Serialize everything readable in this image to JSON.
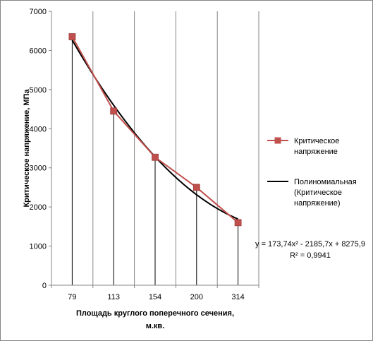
{
  "chart_data": {
    "type": "line",
    "title": "",
    "xlabel_lines": [
      "Площадь круглого поперечного сечения,",
      "м.кв."
    ],
    "ylabel": "Критическое напряжение, МПа",
    "categories": [
      "79",
      "113",
      "154",
      "200",
      "314"
    ],
    "ylim": [
      0,
      7000
    ],
    "yticks": [
      0,
      1000,
      2000,
      3000,
      4000,
      5000,
      6000,
      7000
    ],
    "ytick_labels": [
      "0",
      "1000",
      "2000",
      "3000",
      "4000",
      "5000",
      "6000",
      "7000"
    ],
    "grid": "vertical lines at category positions",
    "series": [
      {
        "name_lines": [
          "Критическое",
          "напряжение"
        ],
        "color": "#C0504D",
        "marker": "square",
        "values": [
          6350,
          4450,
          3270,
          2500,
          1600
        ]
      }
    ],
    "trendline": {
      "name_lines": [
        "Полиномиальная",
        "(Критическое",
        "напряжение)"
      ],
      "color": "#000000",
      "coefficients": [
        173.74,
        -2185.7,
        8275.9
      ],
      "equation": "y = 173,74x² - 2185,7x + 8275,9",
      "r_squared": "R² = 0,9941"
    },
    "legend_position": "right"
  }
}
